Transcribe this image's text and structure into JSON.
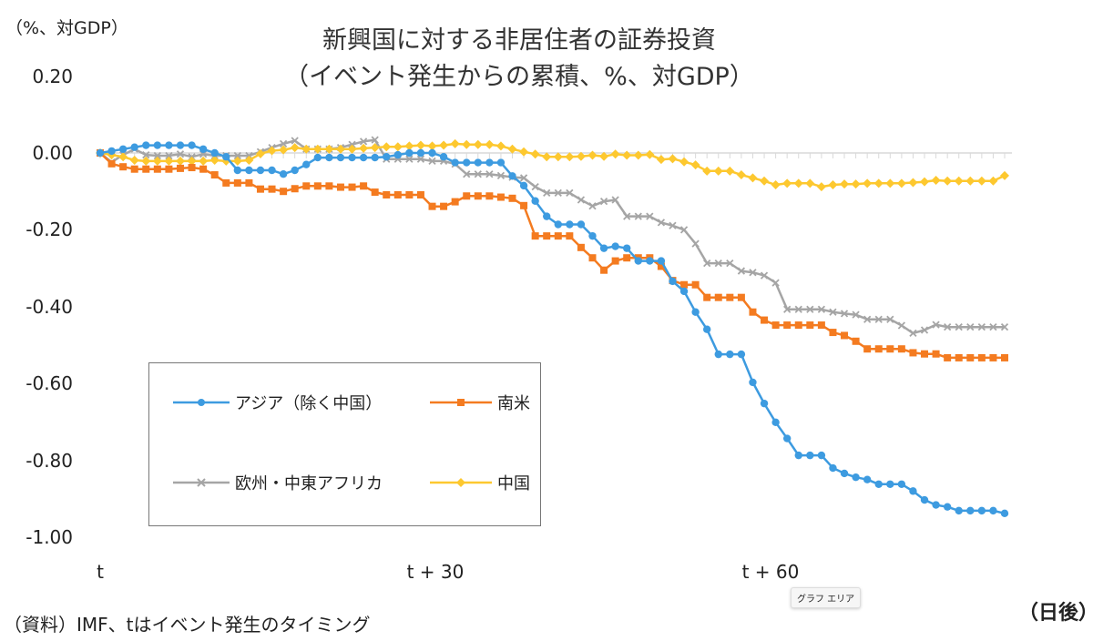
{
  "chart_data": {
    "type": "line",
    "title": [
      "新興国に対する非居住者の証券投資",
      "（イベント発生からの累積、%、対GDP）"
    ],
    "ylabel": "（%、対GDP）",
    "xlabel": "（日後）",
    "ylim": [
      -1.0,
      0.2
    ],
    "yticks": [
      "0.20",
      "0.00",
      "-0.20",
      "-0.40",
      "-0.60",
      "-0.80",
      "-1.00"
    ],
    "xtick_labels": [
      {
        "index": 0,
        "label": "t"
      },
      {
        "index": 30,
        "label": "t + 30"
      },
      {
        "index": 60,
        "label": "t + 60"
      }
    ],
    "grid": false,
    "legend_placement": "inside-lower-left",
    "series": [
      {
        "name": "アジア（除く中国）",
        "color": "#3d9be0",
        "marker": "circle",
        "values": [
          0,
          0.005,
          0.01,
          0.015,
          0.02,
          0.02,
          0.02,
          0.02,
          0.02,
          0.01,
          0.0,
          -0.01,
          -0.045,
          -0.045,
          -0.045,
          -0.045,
          -0.055,
          -0.045,
          -0.03,
          -0.012,
          -0.012,
          -0.012,
          -0.012,
          -0.012,
          -0.012,
          -0.01,
          -0.005,
          0.0,
          0.0,
          0.0,
          -0.01,
          -0.025,
          -0.025,
          -0.025,
          -0.025,
          -0.025,
          -0.06,
          -0.085,
          -0.125,
          -0.165,
          -0.186,
          -0.186,
          -0.186,
          -0.216,
          -0.248,
          -0.243,
          -0.248,
          -0.281,
          -0.281,
          -0.281,
          -0.334,
          -0.36,
          -0.414,
          -0.459,
          -0.524,
          -0.524,
          -0.524,
          -0.597,
          -0.652,
          -0.701,
          -0.743,
          -0.787,
          -0.787,
          -0.787,
          -0.82,
          -0.834,
          -0.844,
          -0.85,
          -0.862,
          -0.862,
          -0.862,
          -0.88,
          -0.903,
          -0.916,
          -0.921,
          -0.931,
          -0.931,
          -0.931,
          -0.931,
          -0.938
        ]
      },
      {
        "name": "南米",
        "color": "#f47b20",
        "marker": "square",
        "values": [
          0,
          -0.028,
          -0.036,
          -0.042,
          -0.042,
          -0.042,
          -0.042,
          -0.04,
          -0.038,
          -0.042,
          -0.057,
          -0.078,
          -0.078,
          -0.078,
          -0.094,
          -0.094,
          -0.1,
          -0.093,
          -0.086,
          -0.086,
          -0.086,
          -0.089,
          -0.089,
          -0.086,
          -0.102,
          -0.109,
          -0.109,
          -0.109,
          -0.109,
          -0.139,
          -0.139,
          -0.127,
          -0.112,
          -0.112,
          -0.112,
          -0.115,
          -0.118,
          -0.137,
          -0.216,
          -0.216,
          -0.216,
          -0.216,
          -0.246,
          -0.273,
          -0.305,
          -0.281,
          -0.273,
          -0.273,
          -0.273,
          -0.295,
          -0.332,
          -0.343,
          -0.343,
          -0.376,
          -0.376,
          -0.376,
          -0.376,
          -0.414,
          -0.435,
          -0.448,
          -0.448,
          -0.448,
          -0.448,
          -0.448,
          -0.467,
          -0.475,
          -0.49,
          -0.51,
          -0.51,
          -0.51,
          -0.51,
          -0.52,
          -0.523,
          -0.523,
          -0.533,
          -0.533,
          -0.533,
          -0.533,
          -0.533,
          -0.533
        ]
      },
      {
        "name": "欧州・中東アフリカ",
        "color": "#a5a5a5",
        "marker": "x",
        "values": [
          0,
          -0.024,
          -0.005,
          0.01,
          -0.005,
          -0.007,
          -0.007,
          -0.003,
          -0.01,
          -0.003,
          -0.007,
          -0.007,
          -0.007,
          -0.007,
          0.003,
          0.014,
          0.024,
          0.032,
          0.01,
          0.01,
          0.01,
          0.014,
          0.022,
          0.03,
          0.034,
          -0.016,
          -0.016,
          -0.016,
          -0.016,
          -0.021,
          -0.021,
          -0.029,
          -0.055,
          -0.055,
          -0.055,
          -0.059,
          -0.063,
          -0.065,
          -0.088,
          -0.104,
          -0.104,
          -0.104,
          -0.122,
          -0.138,
          -0.126,
          -0.122,
          -0.165,
          -0.165,
          -0.165,
          -0.181,
          -0.189,
          -0.2,
          -0.236,
          -0.287,
          -0.287,
          -0.287,
          -0.307,
          -0.311,
          -0.319,
          -0.338,
          -0.407,
          -0.407,
          -0.407,
          -0.407,
          -0.414,
          -0.418,
          -0.421,
          -0.433,
          -0.433,
          -0.433,
          -0.449,
          -0.469,
          -0.461,
          -0.447,
          -0.453,
          -0.453,
          -0.453,
          -0.453,
          -0.453,
          -0.453
        ]
      },
      {
        "name": "中国",
        "color": "#fdc82f",
        "marker": "diamond",
        "values": [
          0,
          -0.005,
          -0.01,
          -0.019,
          -0.021,
          -0.021,
          -0.021,
          -0.021,
          -0.021,
          -0.021,
          -0.019,
          -0.021,
          -0.021,
          -0.019,
          -0.002,
          0.006,
          0.008,
          0.014,
          0.01,
          0.01,
          0.01,
          0.01,
          0.01,
          0.012,
          0.014,
          0.016,
          0.016,
          0.018,
          0.02,
          0.018,
          0.02,
          0.024,
          0.022,
          0.022,
          0.022,
          0.018,
          0.01,
          0.003,
          -0.003,
          -0.01,
          -0.01,
          -0.01,
          -0.009,
          -0.006,
          -0.009,
          -0.003,
          -0.006,
          -0.006,
          -0.004,
          -0.017,
          -0.015,
          -0.023,
          -0.031,
          -0.047,
          -0.047,
          -0.047,
          -0.057,
          -0.065,
          -0.073,
          -0.083,
          -0.079,
          -0.079,
          -0.079,
          -0.088,
          -0.083,
          -0.081,
          -0.081,
          -0.079,
          -0.079,
          -0.079,
          -0.079,
          -0.077,
          -0.075,
          -0.071,
          -0.073,
          -0.073,
          -0.073,
          -0.073,
          -0.073,
          -0.059
        ]
      }
    ]
  },
  "source": "（資料）IMF、tはイベント発生のタイミング",
  "tooltip": "グラフ エリア"
}
